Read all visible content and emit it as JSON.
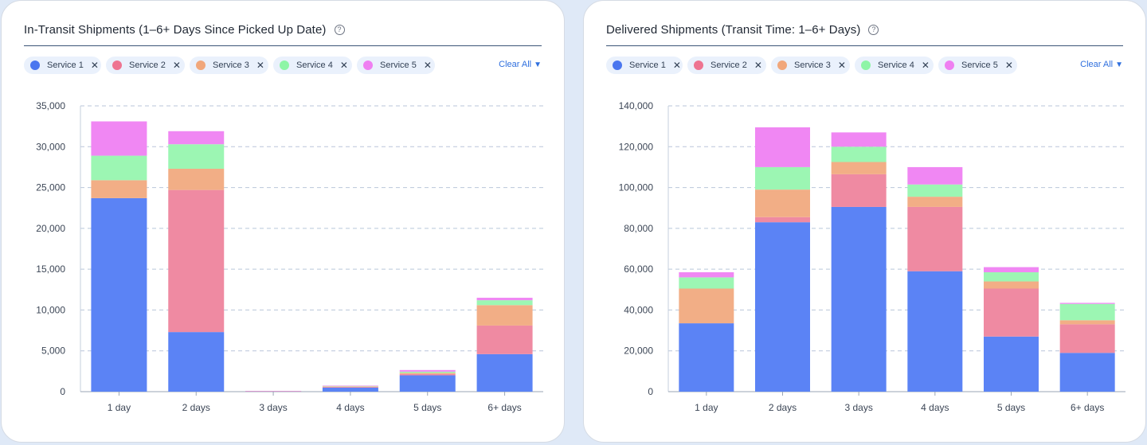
{
  "panels": [
    {
      "title": "In-Transit Shipments (1–6+ Days Since Picked Up Date)",
      "help_icon": "?",
      "clear_all": "Clear All",
      "legend": [
        {
          "label": "Service 1",
          "color": "#4a76ef"
        },
        {
          "label": "Service 2",
          "color": "#ee7491"
        },
        {
          "label": "Service 3",
          "color": "#f1a77b"
        },
        {
          "label": "Service 4",
          "color": "#8ef5a6"
        },
        {
          "label": "Service 5",
          "color": "#ef7ff1"
        }
      ],
      "legend_remove": "✕"
    },
    {
      "title": "Delivered Shipments (Transit Time: 1–6+ Days)",
      "help_icon": "?",
      "clear_all": "Clear All",
      "legend": [
        {
          "label": "Service 1",
          "color": "#4a76ef"
        },
        {
          "label": "Service 2",
          "color": "#ee7491"
        },
        {
          "label": "Service 3",
          "color": "#f1a77b"
        },
        {
          "label": "Service 4",
          "color": "#8ef5a6"
        },
        {
          "label": "Service 5",
          "color": "#ef7ff1"
        }
      ],
      "legend_remove": "✕"
    }
  ],
  "chart_data": [
    {
      "type": "bar",
      "stacked": true,
      "title": "In-Transit Shipments (1–6+ Days Since Picked Up Date)",
      "categories": [
        "1 day",
        "2 days",
        "3 days",
        "4 days",
        "5 days",
        "6+ days"
      ],
      "ylim": [
        0,
        35000
      ],
      "yticks": [
        0,
        5000,
        10000,
        15000,
        20000,
        25000,
        30000,
        35000
      ],
      "ytick_labels": [
        "0",
        "5,000",
        "10,000",
        "15,000",
        "20,000",
        "25,000",
        "30,000",
        "35,000"
      ],
      "grid": true,
      "legend_position": "top-left",
      "series": [
        {
          "name": "Service 1",
          "color": "#5b83f5",
          "values": [
            23700,
            7300,
            50,
            500,
            2000,
            4600
          ]
        },
        {
          "name": "Service 2",
          "color": "#ef8aa2",
          "values": [
            0,
            17400,
            20,
            100,
            150,
            3500
          ]
        },
        {
          "name": "Service 3",
          "color": "#f2ae86",
          "values": [
            2200,
            2600,
            10,
            50,
            150,
            2500
          ]
        },
        {
          "name": "Service 4",
          "color": "#9cf6b3",
          "values": [
            3000,
            3000,
            10,
            50,
            150,
            600
          ]
        },
        {
          "name": "Service 5",
          "color": "#f087f3",
          "values": [
            4200,
            1600,
            10,
            50,
            200,
            300
          ]
        }
      ]
    },
    {
      "type": "bar",
      "stacked": true,
      "title": "Delivered Shipments (Transit Time: 1–6+ Days)",
      "categories": [
        "1 day",
        "2 days",
        "3 days",
        "4 days",
        "5 days",
        "6+ days"
      ],
      "ylim": [
        0,
        140000
      ],
      "yticks": [
        0,
        20000,
        40000,
        60000,
        80000,
        100000,
        120000,
        140000
      ],
      "ytick_labels": [
        "0",
        "20,000",
        "40,000",
        "60,000",
        "80,000",
        "100,000",
        "120,000",
        "140,000"
      ],
      "grid": true,
      "legend_position": "top-left",
      "series": [
        {
          "name": "Service 1",
          "color": "#5b83f5",
          "values": [
            33500,
            83000,
            90500,
            59000,
            27000,
            19000
          ]
        },
        {
          "name": "Service 2",
          "color": "#ef8aa2",
          "values": [
            0,
            2500,
            16000,
            31500,
            23500,
            14000
          ]
        },
        {
          "name": "Service 3",
          "color": "#f2ae86",
          "values": [
            17000,
            13500,
            6000,
            5000,
            3500,
            2000
          ]
        },
        {
          "name": "Service 4",
          "color": "#9cf6b3",
          "values": [
            5500,
            11000,
            7500,
            6000,
            4500,
            8000
          ]
        },
        {
          "name": "Service 5",
          "color": "#f087f3",
          "values": [
            2500,
            19500,
            7000,
            8500,
            2500,
            500
          ]
        }
      ]
    }
  ]
}
